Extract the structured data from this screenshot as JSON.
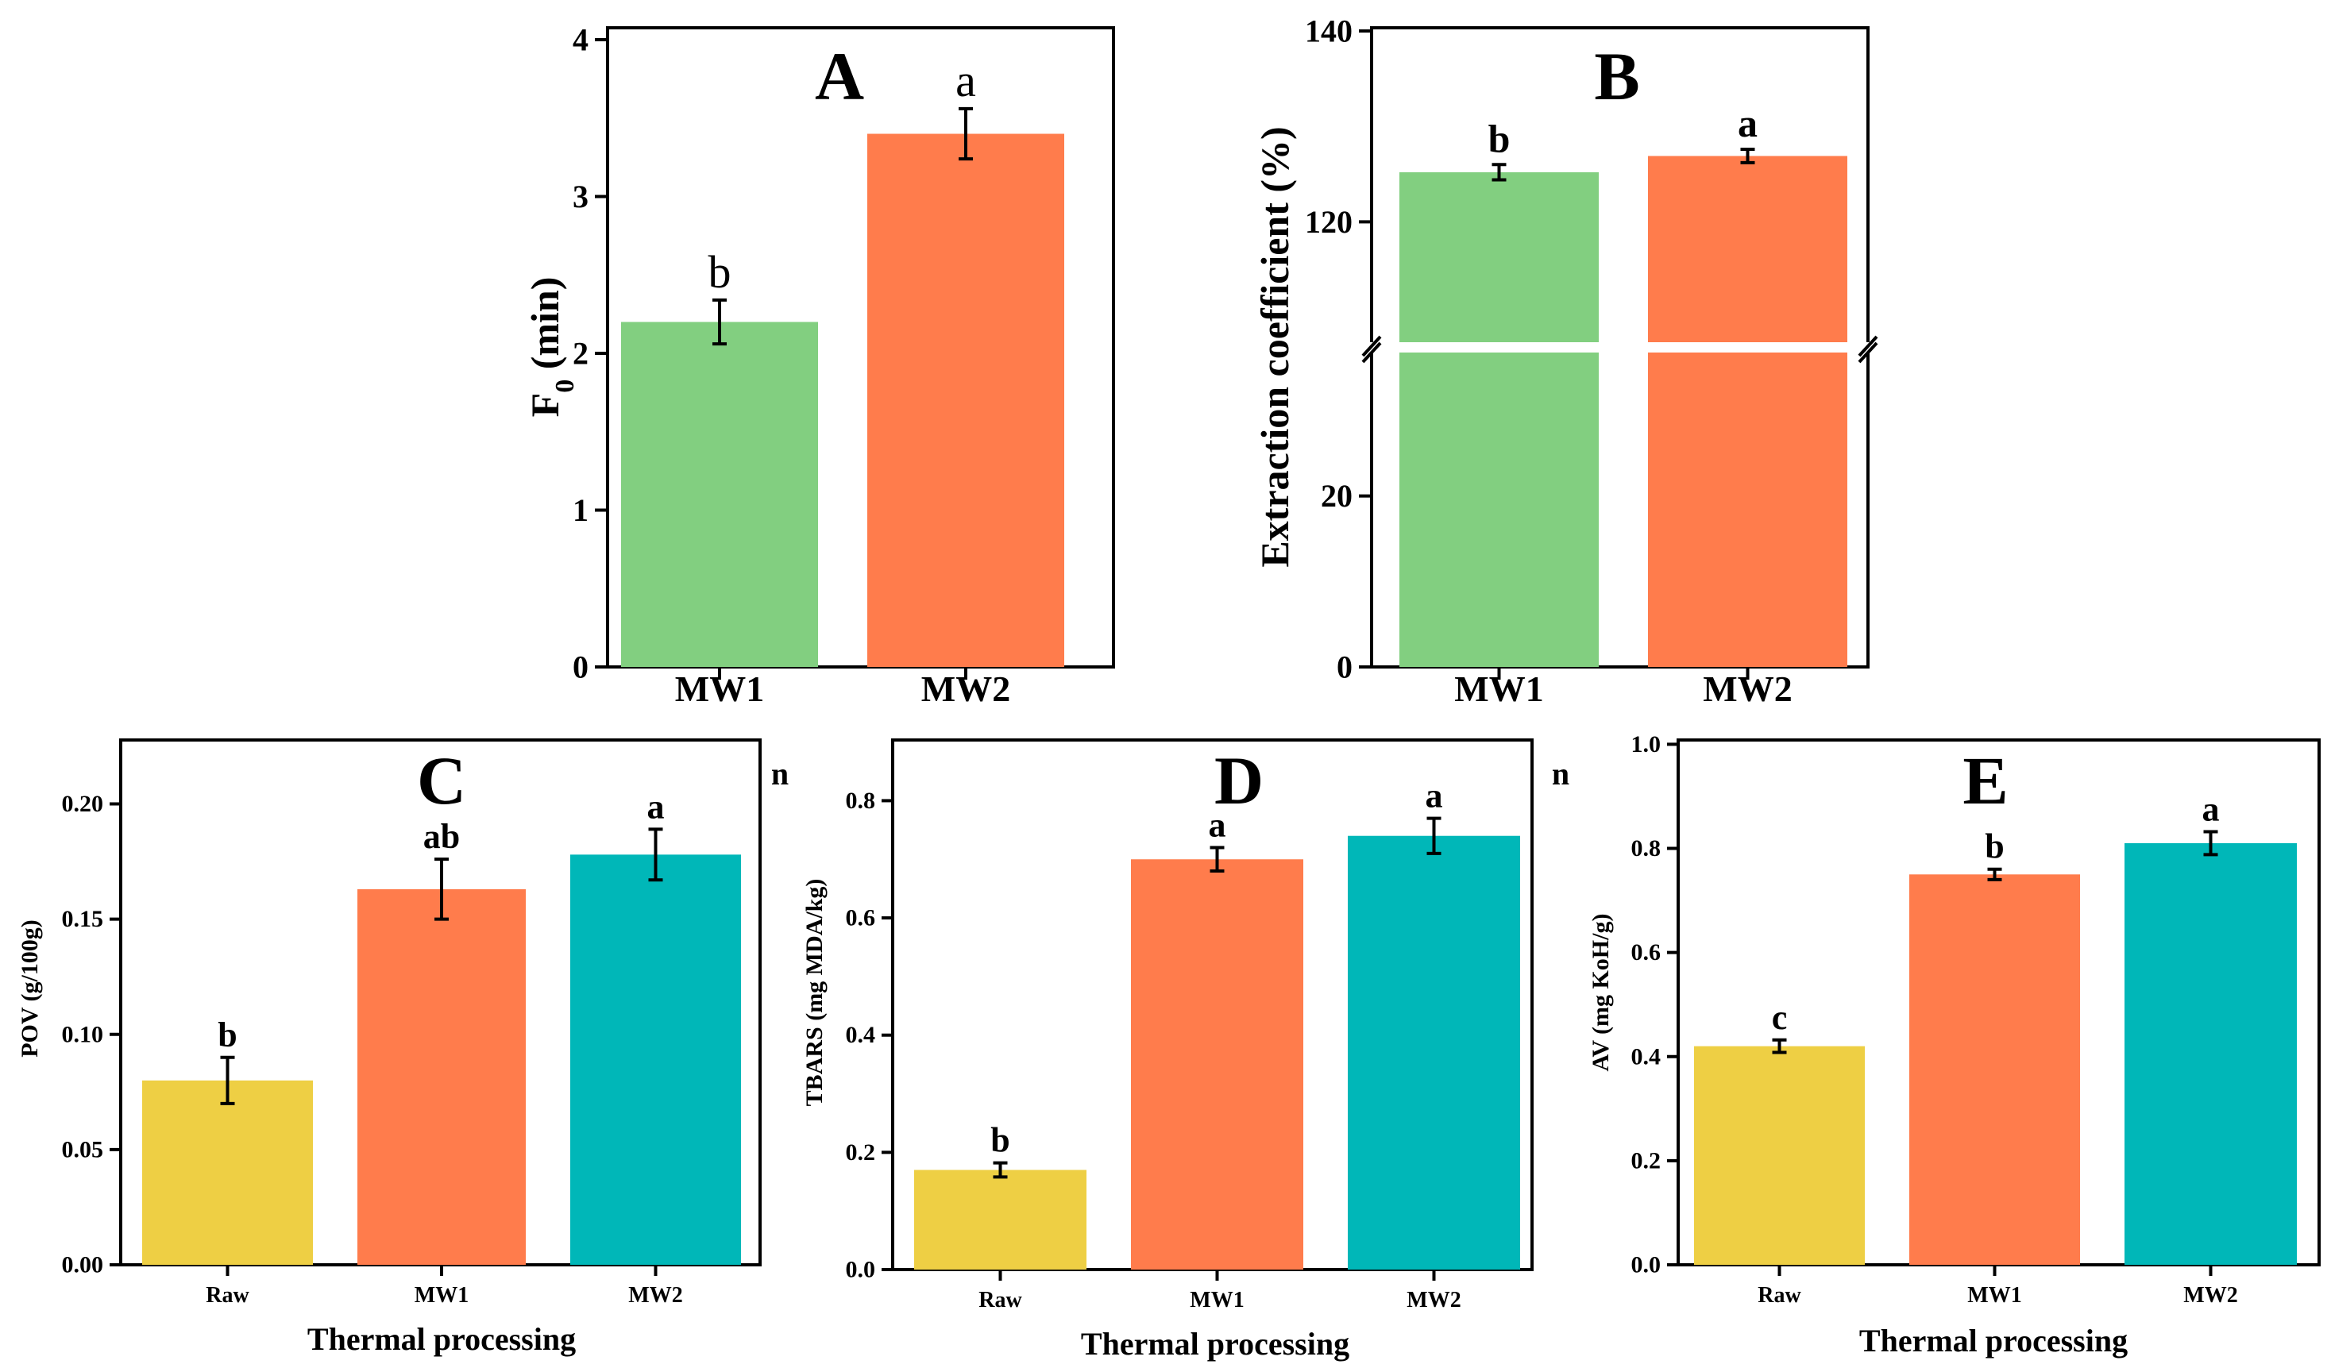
{
  "colors": {
    "green": "#82CF80",
    "orange": "#FF7C4C",
    "yellow": "#EECF44",
    "teal": "#00B7B8",
    "axis": "#000000"
  },
  "chart_data": [
    {
      "id": "A",
      "type": "bar",
      "panel_label": "A",
      "categories": [
        "MW1",
        "MW2"
      ],
      "values": [
        2.2,
        3.4
      ],
      "errors": [
        0.14,
        0.16
      ],
      "sig_letters": [
        "b",
        "a"
      ],
      "ylabel_main": "F",
      "ylabel_sub": "0",
      "ylabel_rest": " (min)",
      "xlabel": "",
      "ylim": [
        0,
        4
      ],
      "yticks": [
        0,
        1,
        2,
        3,
        4
      ],
      "tick_labels": [
        "0",
        "1",
        "2",
        "3",
        "4"
      ],
      "bar_colors": [
        "#82CF80",
        "#FF7C4C"
      ]
    },
    {
      "id": "B",
      "type": "bar",
      "panel_label": "B",
      "broken_axis": true,
      "categories": [
        "MW1",
        "MW2"
      ],
      "values": [
        125.2,
        126.9
      ],
      "errors": [
        0.8,
        0.7
      ],
      "sig_letters": [
        "b",
        "a"
      ],
      "ylabel": "Extraction coefficient (%)",
      "xlabel": "",
      "ylim": [
        0,
        140
      ],
      "yticks": [
        0,
        20,
        120,
        140
      ],
      "tick_labels": [
        "0",
        "20",
        "120",
        "140"
      ],
      "bar_colors": [
        "#82CF80",
        "#FF7C4C"
      ]
    },
    {
      "id": "C",
      "type": "bar",
      "panel_label": "C",
      "categories": [
        "Raw",
        "MW1",
        "MW2"
      ],
      "values": [
        0.08,
        0.163,
        0.178
      ],
      "errors": [
        0.01,
        0.013,
        0.011
      ],
      "sig_letters": [
        "b",
        "ab",
        "a"
      ],
      "ylabel": "POV (g/100g)",
      "xlabel": "Thermal processing",
      "ylim": [
        0,
        0.22
      ],
      "yticks": [
        0,
        0.05,
        0.1,
        0.15,
        0.2
      ],
      "tick_labels": [
        "0.00",
        "0.05",
        "0.10",
        "0.15",
        "0.20"
      ],
      "bar_colors": [
        "#EECF44",
        "#FF7C4C",
        "#00B7B8"
      ]
    },
    {
      "id": "D",
      "type": "bar",
      "panel_label": "D",
      "categories": [
        "Raw",
        "MW1",
        "MW2"
      ],
      "values": [
        0.17,
        0.7,
        0.74
      ],
      "errors": [
        0.012,
        0.02,
        0.03
      ],
      "sig_letters": [
        "b",
        "a",
        "a"
      ],
      "ylabel": "TBARS (mg MDA/kg)",
      "xlabel": "Thermal processing",
      "ylim": [
        0,
        0.9
      ],
      "yticks": [
        0,
        0.2,
        0.4,
        0.6,
        0.8
      ],
      "tick_labels": [
        "0.0",
        "0.2",
        "0.4",
        "0.6",
        "0.8"
      ],
      "bar_colors": [
        "#EECF44",
        "#FF7C4C",
        "#00B7B8"
      ]
    },
    {
      "id": "E",
      "type": "bar",
      "panel_label": "E",
      "categories": [
        "Raw",
        "MW1",
        "MW2"
      ],
      "values": [
        0.42,
        0.75,
        0.81
      ],
      "errors": [
        0.012,
        0.01,
        0.022
      ],
      "sig_letters": [
        "c",
        "b",
        "a"
      ],
      "ylabel": "AV (mg KoH/g)",
      "xlabel": "Thermal processing",
      "ylim": [
        0,
        1.0
      ],
      "yticks": [
        0,
        0.2,
        0.4,
        0.6,
        0.8,
        1.0
      ],
      "tick_labels": [
        "0.0",
        "0.2",
        "0.4",
        "0.6",
        "0.8",
        "1.0"
      ],
      "bar_colors": [
        "#EECF44",
        "#FF7C4C",
        "#00B7B8"
      ]
    }
  ],
  "stray_glyphs": [
    "n",
    "n"
  ]
}
